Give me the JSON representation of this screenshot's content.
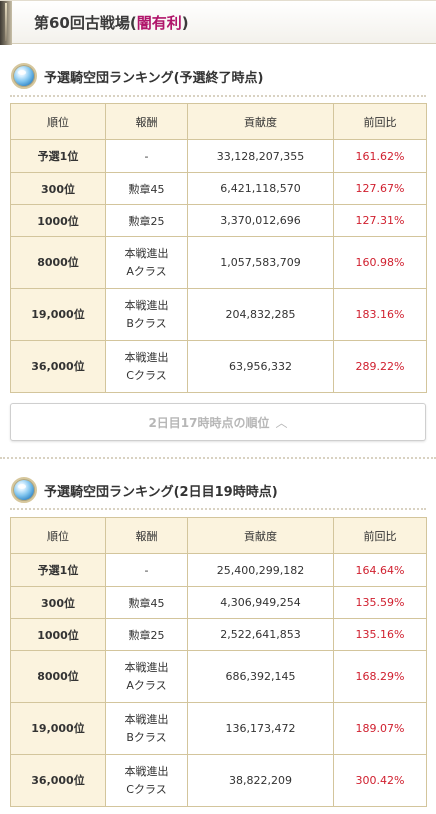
{
  "header": {
    "title_prefix": "第60回古戦場(",
    "title_highlight": "闇有利",
    "title_suffix": ")"
  },
  "sections": [
    {
      "title": "予選騎空団ランキング(予選終了時点)",
      "columns": [
        "順位",
        "報酬",
        "貢献度",
        "前回比"
      ],
      "rows": [
        {
          "rank": "予選1位",
          "reward": [
            "-"
          ],
          "score": "33,128,207,355",
          "ratio": "161.62%"
        },
        {
          "rank": "300位",
          "reward": [
            "勲章45"
          ],
          "score": "6,421,118,570",
          "ratio": "127.67%"
        },
        {
          "rank": "1000位",
          "reward": [
            "勲章25"
          ],
          "score": "3,370,012,696",
          "ratio": "127.31%"
        },
        {
          "rank": "8000位",
          "reward": [
            "本戦進出",
            "Aクラス"
          ],
          "score": "1,057,583,709",
          "ratio": "160.98%"
        },
        {
          "rank": "19,000位",
          "reward": [
            "本戦進出",
            "Bクラス"
          ],
          "score": "204,832,285",
          "ratio": "183.16%"
        },
        {
          "rank": "36,000位",
          "reward": [
            "本戦進出",
            "Cクラス"
          ],
          "score": "63,956,332",
          "ratio": "289.22%"
        }
      ]
    },
    {
      "title": "予選騎空団ランキング(2日目19時時点)",
      "columns": [
        "順位",
        "報酬",
        "貢献度",
        "前回比"
      ],
      "rows": [
        {
          "rank": "予選1位",
          "reward": [
            "-"
          ],
          "score": "25,400,299,182",
          "ratio": "164.64%"
        },
        {
          "rank": "300位",
          "reward": [
            "勲章45"
          ],
          "score": "4,306,949,254",
          "ratio": "135.59%"
        },
        {
          "rank": "1000位",
          "reward": [
            "勲章25"
          ],
          "score": "2,522,641,853",
          "ratio": "135.16%"
        },
        {
          "rank": "8000位",
          "reward": [
            "本戦進出",
            "Aクラス"
          ],
          "score": "686,392,145",
          "ratio": "168.29%"
        },
        {
          "rank": "19,000位",
          "reward": [
            "本戦進出",
            "Bクラス"
          ],
          "score": "136,173,472",
          "ratio": "189.07%"
        },
        {
          "rank": "36,000位",
          "reward": [
            "本戦進出",
            "Cクラス"
          ],
          "score": "38,822,209",
          "ratio": "300.42%"
        }
      ]
    }
  ],
  "toggle": {
    "label": "2日目17時時点の順位",
    "icon": "chevron-up-icon"
  },
  "colors": {
    "highlight": "#b0146a",
    "ratio": "#d0202f",
    "table_border": "#d3c59c",
    "header_bg": "#fbf3de"
  }
}
